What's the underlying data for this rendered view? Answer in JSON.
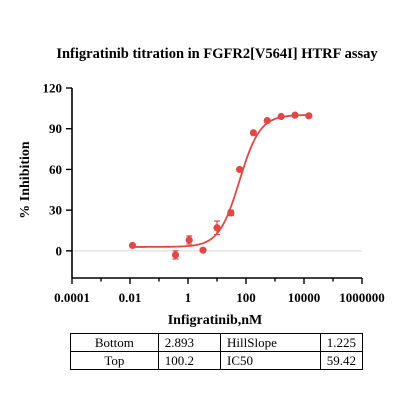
{
  "chart_data": {
    "type": "scatter",
    "title": "Infigratinib titration in FGFR2[V564I] HTRF assay",
    "xlabel": "Infigratinib,nM",
    "ylabel": "% Inhibition",
    "xscale": "log",
    "xlim": [
      0.0001,
      1000000
    ],
    "ylim": [
      -20,
      120
    ],
    "x_ticks": [
      0.0001,
      0.01,
      1,
      100,
      10000,
      1000000
    ],
    "x_tick_labels": [
      "0.0001",
      "0.01",
      "1",
      "100",
      "10000",
      "1000000"
    ],
    "y_ticks": [
      0,
      30,
      60,
      90,
      120
    ],
    "y_tick_labels": [
      "0",
      "30",
      "60",
      "90",
      "120"
    ],
    "grid": false,
    "series": [
      {
        "x": [
          0.0122,
          0.37,
          1.1,
          3.3,
          10,
          30,
          60,
          180,
          540,
          1630,
          4900,
          14700
        ],
        "y": [
          4,
          -3,
          8,
          0.5,
          17,
          28,
          60,
          87,
          96,
          99,
          100,
          99.5
        ],
        "error": [
          1,
          3,
          3,
          1,
          5,
          2,
          1,
          1,
          1,
          1,
          1,
          1
        ],
        "color": "#e04848"
      }
    ],
    "fit": {
      "model": "4PL",
      "bottom": 2.893,
      "top": 100.2,
      "hillslope": 1.225,
      "ic50": 59.42,
      "color": "#e04848"
    }
  },
  "params_table": {
    "rows": [
      {
        "label1": "Bottom",
        "value1": "2.893",
        "label2": "HillSlope",
        "value2": "1.225"
      },
      {
        "label1": "Top",
        "value1": "100.2",
        "label2": "IC50",
        "value2": "59.42"
      }
    ]
  }
}
